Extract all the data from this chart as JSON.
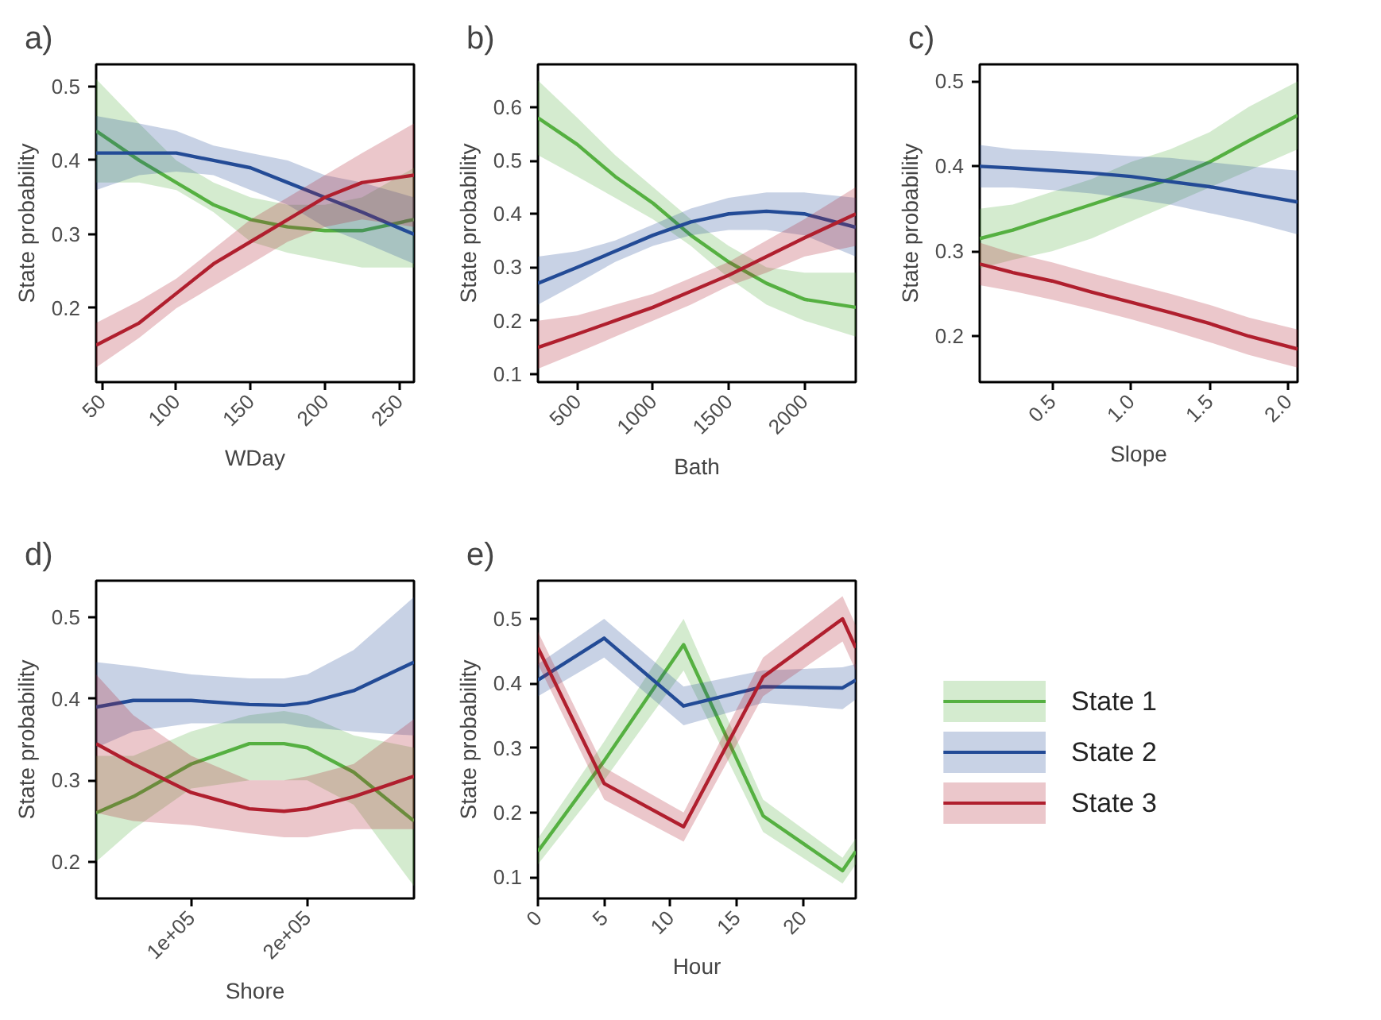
{
  "chart_data": [
    {
      "type": "line",
      "title": "a)",
      "xlabel": "WDay",
      "ylabel": "State probability",
      "x": [
        46,
        75,
        100,
        125,
        150,
        175,
        200,
        225,
        260
      ],
      "xlim": [
        46,
        260
      ],
      "xticks": [
        50,
        100,
        150,
        200,
        250
      ],
      "ylim": [
        0.1,
        0.53
      ],
      "yticks": [
        0.2,
        0.3,
        0.4,
        0.5
      ],
      "legend": false,
      "series": [
        {
          "color": "#55b041",
          "values": [
            0.44,
            0.4,
            0.37,
            0.34,
            0.32,
            0.31,
            0.305,
            0.305,
            0.32
          ],
          "lower": [
            0.37,
            0.37,
            0.36,
            0.33,
            0.29,
            0.275,
            0.265,
            0.255,
            0.255
          ],
          "upper": [
            0.51,
            0.45,
            0.4,
            0.37,
            0.35,
            0.34,
            0.34,
            0.35,
            0.39
          ]
        },
        {
          "color": "#234b96",
          "values": [
            0.41,
            0.41,
            0.41,
            0.4,
            0.39,
            0.37,
            0.35,
            0.33,
            0.3
          ],
          "lower": [
            0.36,
            0.38,
            0.385,
            0.38,
            0.36,
            0.34,
            0.31,
            0.29,
            0.26
          ],
          "upper": [
            0.46,
            0.45,
            0.44,
            0.42,
            0.41,
            0.4,
            0.38,
            0.37,
            0.35
          ]
        },
        {
          "color": "#b01f2e",
          "values": [
            0.15,
            0.18,
            0.22,
            0.26,
            0.29,
            0.32,
            0.35,
            0.37,
            0.38
          ],
          "lower": [
            0.12,
            0.16,
            0.2,
            0.23,
            0.26,
            0.29,
            0.31,
            0.32,
            0.31
          ],
          "upper": [
            0.18,
            0.21,
            0.24,
            0.28,
            0.32,
            0.35,
            0.38,
            0.41,
            0.45
          ]
        }
      ]
    },
    {
      "type": "line",
      "title": "b)",
      "xlabel": "Bath",
      "ylabel": "State probability",
      "x": [
        240,
        500,
        750,
        1000,
        1250,
        1500,
        1750,
        2000,
        2340
      ],
      "xlim": [
        240,
        2340
      ],
      "xticks": [
        500,
        1000,
        1500,
        2000
      ],
      "ylim": [
        0.085,
        0.68
      ],
      "yticks": [
        0.1,
        0.2,
        0.3,
        0.4,
        0.5,
        0.6
      ],
      "legend": false,
      "series": [
        {
          "color": "#55b041",
          "values": [
            0.58,
            0.53,
            0.47,
            0.42,
            0.36,
            0.31,
            0.27,
            0.24,
            0.225
          ],
          "lower": [
            0.51,
            0.47,
            0.43,
            0.39,
            0.34,
            0.28,
            0.23,
            0.2,
            0.17
          ],
          "upper": [
            0.65,
            0.58,
            0.51,
            0.45,
            0.39,
            0.34,
            0.3,
            0.29,
            0.29
          ]
        },
        {
          "color": "#234b96",
          "values": [
            0.27,
            0.3,
            0.33,
            0.36,
            0.385,
            0.4,
            0.405,
            0.4,
            0.375
          ],
          "lower": [
            0.23,
            0.27,
            0.31,
            0.34,
            0.36,
            0.37,
            0.37,
            0.36,
            0.32
          ],
          "upper": [
            0.32,
            0.33,
            0.35,
            0.38,
            0.41,
            0.43,
            0.44,
            0.44,
            0.43
          ]
        },
        {
          "color": "#b01f2e",
          "values": [
            0.15,
            0.175,
            0.2,
            0.225,
            0.255,
            0.285,
            0.32,
            0.355,
            0.4
          ],
          "lower": [
            0.11,
            0.14,
            0.17,
            0.2,
            0.23,
            0.265,
            0.29,
            0.32,
            0.34
          ],
          "upper": [
            0.2,
            0.21,
            0.23,
            0.25,
            0.28,
            0.31,
            0.35,
            0.39,
            0.45
          ]
        }
      ]
    },
    {
      "type": "line",
      "title": "c)",
      "xlabel": "Slope",
      "ylabel": "State probability",
      "x": [
        0.04,
        0.25,
        0.5,
        0.75,
        1.0,
        1.25,
        1.5,
        1.75,
        2.06
      ],
      "xlim": [
        0.04,
        2.06
      ],
      "xticks": [
        {
          "value": 0.5,
          "label": "0.5"
        },
        {
          "value": 1,
          "label": "1.0"
        },
        {
          "value": 1.5,
          "label": "1.5"
        },
        {
          "value": 2,
          "label": "2.0"
        }
      ],
      "ylim": [
        0.146,
        0.52
      ],
      "yticks": [
        0.2,
        0.3,
        0.4,
        0.5
      ],
      "legend": false,
      "series": [
        {
          "color": "#55b041",
          "values": [
            0.315,
            0.325,
            0.34,
            0.355,
            0.37,
            0.385,
            0.405,
            0.43,
            0.46
          ],
          "lower": [
            0.28,
            0.29,
            0.3,
            0.315,
            0.335,
            0.355,
            0.375,
            0.395,
            0.42
          ],
          "upper": [
            0.35,
            0.355,
            0.37,
            0.385,
            0.405,
            0.42,
            0.44,
            0.47,
            0.5
          ]
        },
        {
          "color": "#234b96",
          "values": [
            0.4,
            0.398,
            0.395,
            0.392,
            0.388,
            0.382,
            0.376,
            0.368,
            0.358
          ],
          "lower": [
            0.375,
            0.375,
            0.372,
            0.368,
            0.362,
            0.355,
            0.345,
            0.335,
            0.32
          ],
          "upper": [
            0.425,
            0.42,
            0.418,
            0.415,
            0.412,
            0.41,
            0.405,
            0.4,
            0.395
          ]
        },
        {
          "color": "#b01f2e",
          "values": [
            0.285,
            0.275,
            0.265,
            0.252,
            0.24,
            0.228,
            0.215,
            0.2,
            0.185
          ],
          "lower": [
            0.26,
            0.253,
            0.243,
            0.232,
            0.22,
            0.207,
            0.193,
            0.178,
            0.163
          ],
          "upper": [
            0.31,
            0.298,
            0.287,
            0.274,
            0.262,
            0.25,
            0.237,
            0.222,
            0.208
          ]
        }
      ]
    },
    {
      "type": "line",
      "title": "d)",
      "xlabel": "Shore",
      "ylabel": "State probability",
      "x": [
        18000,
        50000,
        100000,
        150000,
        180000,
        200000,
        240000,
        292000
      ],
      "xlim": [
        18000,
        292000
      ],
      "xticks": [
        {
          "value": 100000,
          "label": "1e+05"
        },
        {
          "value": 200000,
          "label": "2e+05"
        }
      ],
      "ylim": [
        0.155,
        0.545
      ],
      "yticks": [
        0.2,
        0.3,
        0.4,
        0.5
      ],
      "legend": false,
      "series": [
        {
          "color": "#55b041",
          "values": [
            0.26,
            0.28,
            0.32,
            0.345,
            0.345,
            0.34,
            0.31,
            0.25
          ],
          "lower": [
            0.2,
            0.24,
            0.29,
            0.3,
            0.3,
            0.3,
            0.27,
            0.17
          ],
          "upper": [
            0.33,
            0.33,
            0.36,
            0.38,
            0.385,
            0.38,
            0.355,
            0.34
          ]
        },
        {
          "color": "#234b96",
          "values": [
            0.39,
            0.398,
            0.398,
            0.393,
            0.392,
            0.395,
            0.41,
            0.445
          ],
          "lower": [
            0.34,
            0.36,
            0.37,
            0.37,
            0.37,
            0.365,
            0.36,
            0.355
          ],
          "upper": [
            0.445,
            0.44,
            0.43,
            0.425,
            0.425,
            0.43,
            0.46,
            0.525
          ]
        },
        {
          "color": "#b01f2e",
          "values": [
            0.345,
            0.32,
            0.285,
            0.265,
            0.262,
            0.265,
            0.28,
            0.305
          ],
          "lower": [
            0.26,
            0.25,
            0.245,
            0.235,
            0.23,
            0.23,
            0.24,
            0.24
          ],
          "upper": [
            0.43,
            0.38,
            0.33,
            0.3,
            0.3,
            0.305,
            0.32,
            0.375
          ]
        }
      ]
    },
    {
      "type": "line",
      "title": "e)",
      "xlabel": "Hour",
      "ylabel": "State probability",
      "x": [
        0,
        5,
        11,
        17,
        23,
        24
      ],
      "xlim": [
        0,
        24
      ],
      "xticks": [
        0,
        5,
        10,
        15,
        20
      ],
      "ylim": [
        0.067,
        0.559
      ],
      "yticks": [
        0.1,
        0.2,
        0.3,
        0.4,
        0.5
      ],
      "legend": "right",
      "series": [
        {
          "name": "State 1",
          "color": "#55b041",
          "values": [
            0.14,
            0.28,
            0.46,
            0.195,
            0.11,
            0.14
          ],
          "lower": [
            0.12,
            0.25,
            0.42,
            0.17,
            0.09,
            0.12
          ],
          "upper": [
            0.16,
            0.31,
            0.5,
            0.22,
            0.13,
            0.16
          ]
        },
        {
          "name": "State 2",
          "color": "#234b96",
          "values": [
            0.405,
            0.47,
            0.365,
            0.395,
            0.393,
            0.405
          ],
          "lower": [
            0.38,
            0.44,
            0.335,
            0.37,
            0.36,
            0.375
          ],
          "upper": [
            0.43,
            0.5,
            0.395,
            0.42,
            0.425,
            0.43
          ]
        },
        {
          "name": "State 3",
          "color": "#b01f2e",
          "values": [
            0.455,
            0.245,
            0.178,
            0.41,
            0.5,
            0.455
          ],
          "lower": [
            0.43,
            0.22,
            0.155,
            0.38,
            0.465,
            0.42
          ],
          "upper": [
            0.48,
            0.27,
            0.2,
            0.44,
            0.535,
            0.49
          ]
        }
      ]
    }
  ]
}
